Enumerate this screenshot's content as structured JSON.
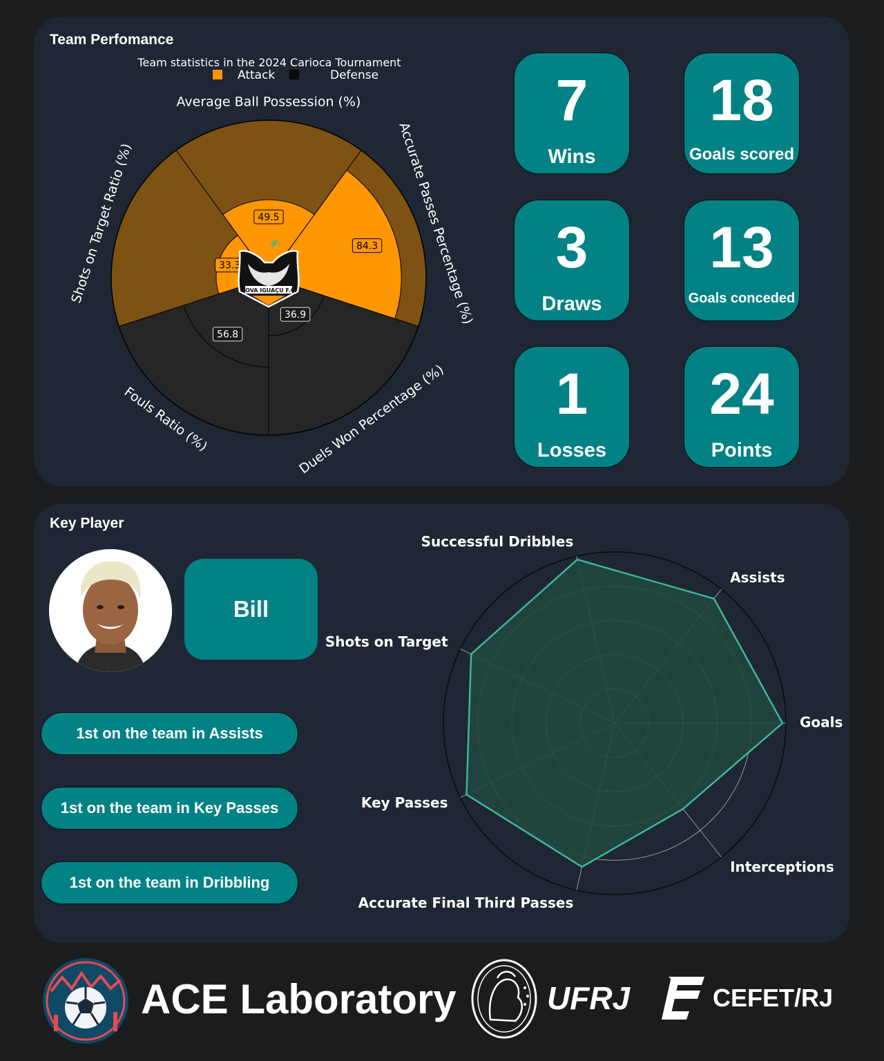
{
  "team_panel": {
    "title": "Team Perfomance",
    "logo_text": "NOVA IGUAÇU F.C."
  },
  "stats": [
    {
      "value": "7",
      "label": "Wins"
    },
    {
      "value": "18",
      "label": "Goals scored"
    },
    {
      "value": "3",
      "label": "Draws"
    },
    {
      "value": "13",
      "label": "Goals conceded"
    },
    {
      "value": "1",
      "label": "Losses"
    },
    {
      "value": "24",
      "label": "Points"
    }
  ],
  "player_panel": {
    "title": "Key Player",
    "player_name": "Bill",
    "rankings": [
      "1st on the team in Assists",
      "1st on the team in Key Passes",
      "1st on the team in Dribbling"
    ]
  },
  "footer": {
    "lab_name": "ACE Laboratory",
    "university": "UFRJ",
    "institute": "CEFET/RJ"
  },
  "colors": {
    "attack": "#ff9604",
    "attack_bg": "#7d5212",
    "defense_bg": "#262626",
    "teal": "#028285",
    "radar_line": "#3db894",
    "radar_fill": "#20473f",
    "panel": "#1e2733"
  },
  "chart_data": [
    {
      "type": "polar-bar",
      "title": "Team statistics in the 2024 Carioca Tournament",
      "legend": [
        "Attack",
        "Defense"
      ],
      "legend_placement": "top",
      "range": [
        0,
        100
      ],
      "categories": [
        {
          "name": "Average Ball Possession (%)",
          "value": 49.5,
          "group": "Attack"
        },
        {
          "name": "Accurate Passes Percentage (%)",
          "value": 84.3,
          "group": "Attack"
        },
        {
          "name": "Duels Won Percentage (%)",
          "value": 36.9,
          "group": "Defense"
        },
        {
          "name": "Fouls Ratio (%)",
          "value": 56.8,
          "group": "Defense"
        },
        {
          "name": "Shots on Target Ratio (%)",
          "value": 33.3,
          "group": "Attack"
        }
      ]
    },
    {
      "type": "radar",
      "range": [
        0,
        1
      ],
      "rings": 4,
      "categories": [
        "Goals",
        "Assists",
        "Successful Dribbles",
        "Shots on Target",
        "Key Passes",
        "Accurate Final Third Passes",
        "Interceptions"
      ],
      "values": [
        0.98,
        0.93,
        0.98,
        0.93,
        0.96,
        0.86,
        0.64
      ]
    }
  ]
}
